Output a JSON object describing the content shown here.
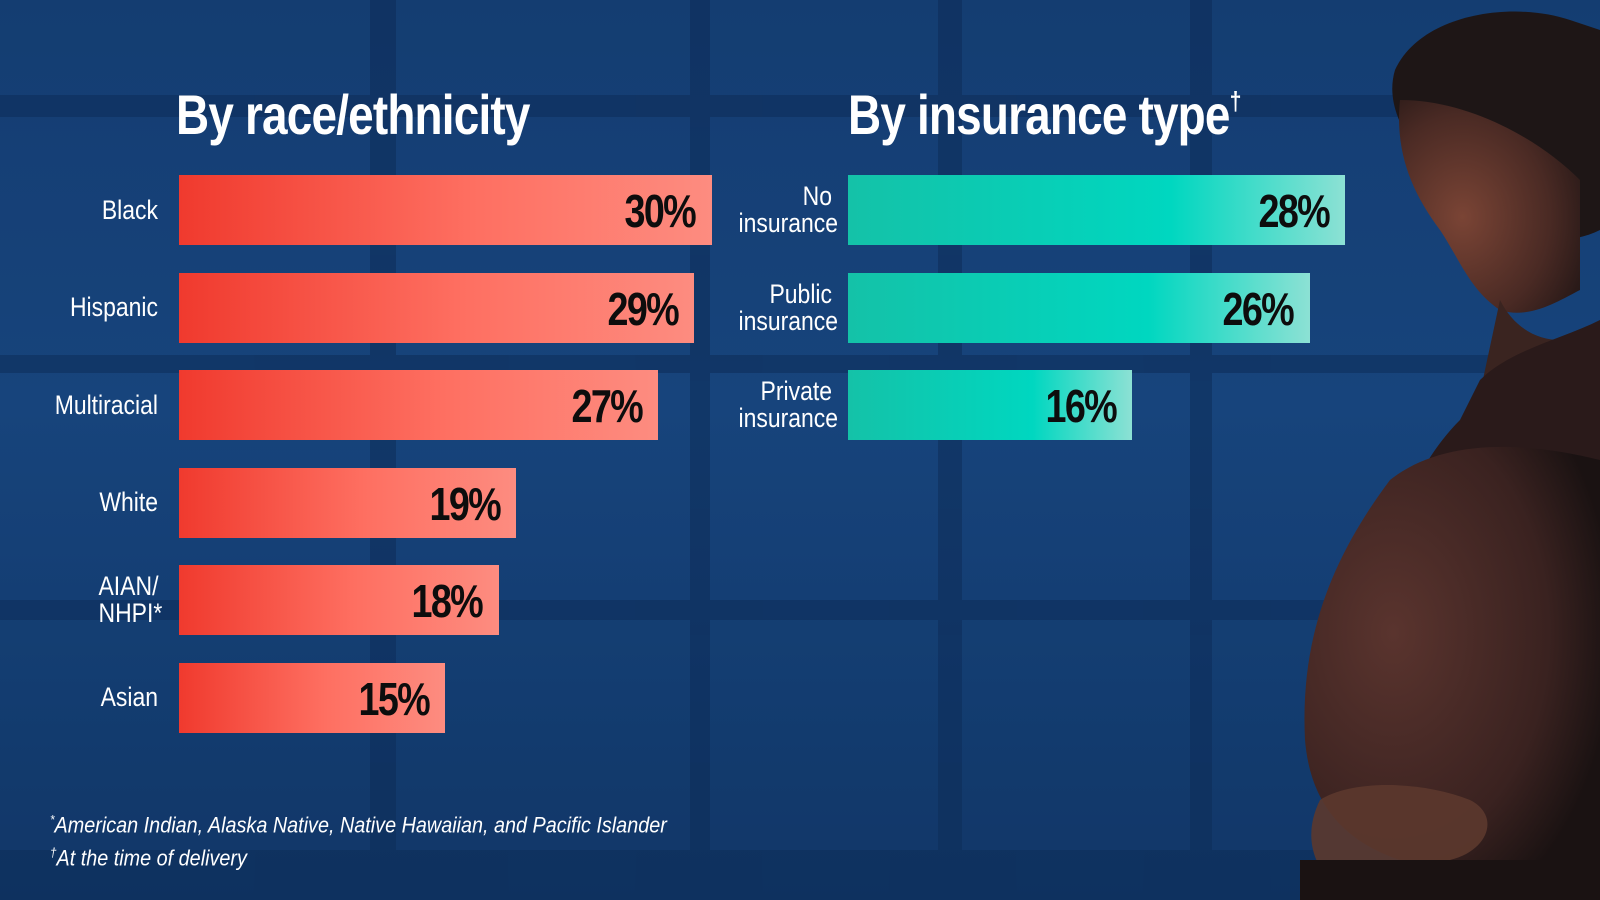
{
  "chart_data": [
    {
      "type": "bar",
      "orientation": "horizontal",
      "title": "By race/ethnicity",
      "categories": [
        "Black",
        "Hispanic",
        "Multiracial",
        "White",
        "AIAN/ NHPI*",
        "Asian"
      ],
      "values": [
        30,
        29,
        27,
        19,
        18,
        15
      ],
      "value_labels": [
        "30%",
        "29%",
        "27%",
        "19%",
        "18%",
        "15%"
      ],
      "colors": {
        "bar": "#fe6f61",
        "bar_start": "#f03a2e",
        "label_text": "#0d0d0d"
      }
    },
    {
      "type": "bar",
      "orientation": "horizontal",
      "title": "By insurance type",
      "title_mark": "†",
      "categories": [
        "No insurance",
        "Public insurance",
        "Private insurance"
      ],
      "values": [
        28,
        26,
        16
      ],
      "value_labels": [
        "28%",
        "26%",
        "16%"
      ],
      "colors": {
        "bar": "#00d7c0",
        "bar_start": "#14c2a8",
        "label_text": "#0d0d0d"
      }
    }
  ],
  "footnotes": {
    "note1_mark": "*",
    "note1": "American Indian, Alaska Native, Native Hawaiian, and Pacific Islander",
    "note2_mark": "†",
    "note2": "At the time of delivery"
  },
  "colors": {
    "background": "#17427a"
  }
}
